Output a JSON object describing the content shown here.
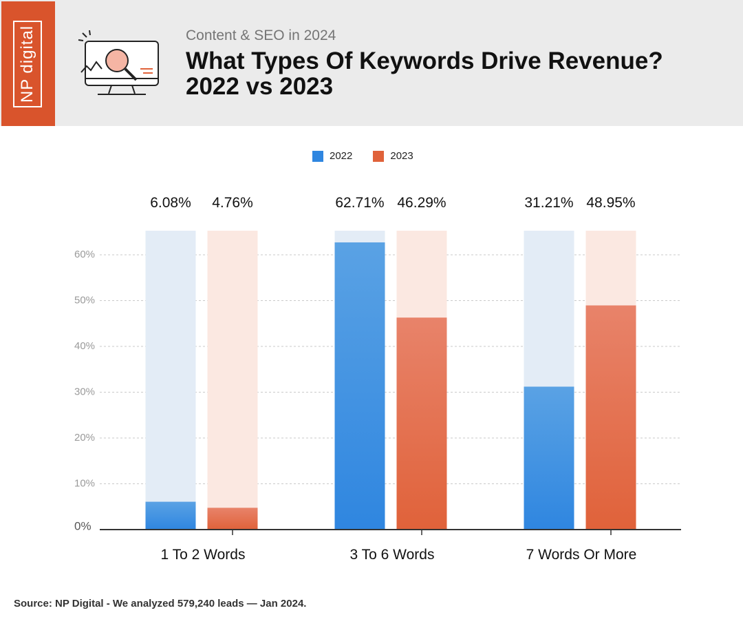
{
  "brand": {
    "logo_text": "NP digital"
  },
  "header": {
    "subtitle": "Content & SEO in 2024",
    "title_line1": "What Types Of Keywords Drive Revenue?",
    "title_line2": "2022 vs 2023",
    "icon": "monitor-search-icon"
  },
  "colors": {
    "brand_orange": "#d9542c",
    "series_2022": "#2f86e0",
    "series_2023": "#e0623a",
    "track_2022": "#e3ecf6",
    "track_2023": "#fbe8e1"
  },
  "chart_data": {
    "type": "bar",
    "categories": [
      "1 To 2 Words",
      "3 To 6 Words",
      "7 Words Or More"
    ],
    "series": [
      {
        "name": "2022",
        "values": [
          6.08,
          62.71,
          31.21
        ],
        "labels": [
          "6.08%",
          "62.71%",
          "31.21%"
        ]
      },
      {
        "name": "2023",
        "values": [
          4.76,
          46.29,
          48.95
        ],
        "labels": [
          "4.76%",
          "46.29%",
          "48.95%"
        ]
      }
    ],
    "yticks": [
      0,
      10,
      20,
      30,
      40,
      50,
      60
    ],
    "ytick_labels": [
      "0%",
      "10%",
      "20%",
      "30%",
      "40%",
      "50%",
      "60%"
    ],
    "ylim": [
      0,
      65.5
    ],
    "grid": true,
    "legend_position": "top-center"
  },
  "footer": {
    "source": "Source: NP Digital - We analyzed 579,240 leads — Jan 2024."
  }
}
